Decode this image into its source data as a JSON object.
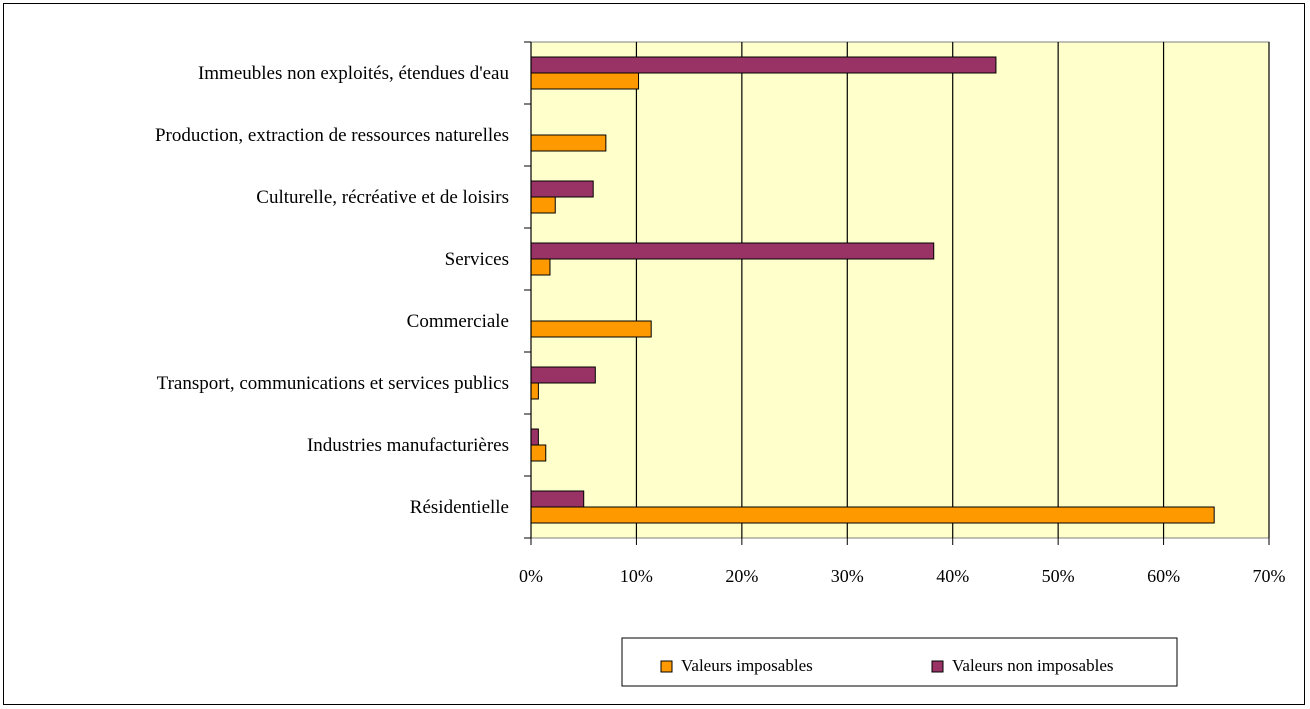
{
  "chart_data": {
    "type": "bar",
    "orientation": "horizontal",
    "categories": [
      "Immeubles non exploités, étendues d'eau",
      "Production, extraction de ressources naturelles",
      "Culturelle, récréative et de loisirs",
      "Services",
      "Commerciale",
      "Transport, communications et services publics",
      "Industries manufacturières",
      "Résidentielle"
    ],
    "series": [
      {
        "name": "Valeurs imposables",
        "color": "#FF9900",
        "values": [
          10.2,
          7.1,
          2.3,
          1.8,
          11.4,
          0.7,
          1.4,
          64.8
        ]
      },
      {
        "name": "Valeurs non imposables",
        "color": "#993366",
        "values": [
          44.1,
          0.0,
          5.9,
          38.2,
          0.0,
          6.1,
          0.7,
          5.0
        ]
      }
    ],
    "xlim": [
      0,
      70
    ],
    "x_ticks": [
      "0%",
      "10%",
      "20%",
      "30%",
      "40%",
      "50%",
      "60%",
      "70%"
    ],
    "grid": "vertical",
    "plot_background": "#FFFFCC",
    "legend_position": "bottom"
  }
}
